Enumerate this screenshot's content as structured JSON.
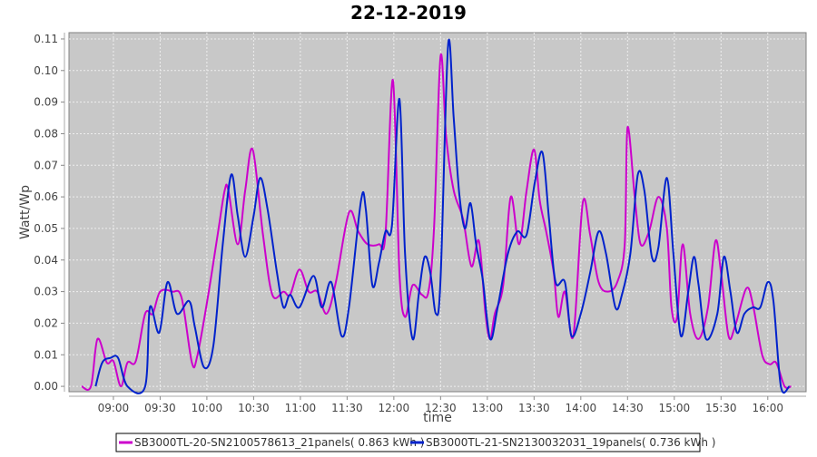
{
  "chart_data": {
    "type": "line",
    "title": "22-12-2019",
    "xlabel": "time",
    "ylabel": "Watt/Wp",
    "x_unit": "hours of day (decimal)",
    "xlim": [
      8.525,
      16.41
    ],
    "ylim": [
      -0.0017,
      0.112
    ],
    "grid": true,
    "legend_position": "bottom",
    "x_ticks": [
      {
        "value": 9.0,
        "label": "09:00"
      },
      {
        "value": 9.5,
        "label": "09:30"
      },
      {
        "value": 10.0,
        "label": "10:00"
      },
      {
        "value": 10.5,
        "label": "10:30"
      },
      {
        "value": 11.0,
        "label": "11:00"
      },
      {
        "value": 11.5,
        "label": "11:30"
      },
      {
        "value": 12.0,
        "label": "12:00"
      },
      {
        "value": 12.5,
        "label": "12:30"
      },
      {
        "value": 13.0,
        "label": "13:00"
      },
      {
        "value": 13.5,
        "label": "13:30"
      },
      {
        "value": 14.0,
        "label": "14:00"
      },
      {
        "value": 14.5,
        "label": "14:30"
      },
      {
        "value": 15.0,
        "label": "15:00"
      },
      {
        "value": 15.5,
        "label": "15:30"
      },
      {
        "value": 16.0,
        "label": "16:00"
      }
    ],
    "y_ticks": [
      {
        "value": 0.0,
        "label": "0.00"
      },
      {
        "value": 0.01,
        "label": "0.01"
      },
      {
        "value": 0.02,
        "label": "0.02"
      },
      {
        "value": 0.03,
        "label": "0.03"
      },
      {
        "value": 0.04,
        "label": "0.04"
      },
      {
        "value": 0.05,
        "label": "0.05"
      },
      {
        "value": 0.06,
        "label": "0.06"
      },
      {
        "value": 0.07,
        "label": "0.07"
      },
      {
        "value": 0.08,
        "label": "0.08"
      },
      {
        "value": 0.09,
        "label": "0.09"
      },
      {
        "value": 0.1,
        "label": "0.10"
      },
      {
        "value": 0.11,
        "label": "0.11"
      }
    ],
    "series": [
      {
        "name": "SB3000TL-20-SN2100578613_21panels( 0.863 kWh )",
        "color": "#cc00cc",
        "points": [
          [
            8.66,
            0
          ],
          [
            8.76,
            0
          ],
          [
            8.83,
            0.015
          ],
          [
            8.93,
            0.0075
          ],
          [
            9.0,
            0.008
          ],
          [
            9.08,
            0
          ],
          [
            9.15,
            0.0075
          ],
          [
            9.24,
            0.008
          ],
          [
            9.34,
            0.023
          ],
          [
            9.42,
            0.023
          ],
          [
            9.5,
            0.03
          ],
          [
            9.63,
            0.03
          ],
          [
            9.73,
            0.028
          ],
          [
            9.84,
            0.0075
          ],
          [
            9.9,
            0.01
          ],
          [
            10.02,
            0.03
          ],
          [
            10.12,
            0.049
          ],
          [
            10.19,
            0.062
          ],
          [
            10.23,
            0.062
          ],
          [
            10.33,
            0.045
          ],
          [
            10.41,
            0.062
          ],
          [
            10.49,
            0.075
          ],
          [
            10.6,
            0.048
          ],
          [
            10.7,
            0.029
          ],
          [
            10.82,
            0.03
          ],
          [
            10.89,
            0.029
          ],
          [
            10.99,
            0.037
          ],
          [
            11.09,
            0.03
          ],
          [
            11.18,
            0.03
          ],
          [
            11.28,
            0.023
          ],
          [
            11.38,
            0.033
          ],
          [
            11.52,
            0.055
          ],
          [
            11.62,
            0.049
          ],
          [
            11.72,
            0.045
          ],
          [
            11.84,
            0.045
          ],
          [
            11.91,
            0.048
          ],
          [
            11.99,
            0.097
          ],
          [
            12.06,
            0.036
          ],
          [
            12.12,
            0.022
          ],
          [
            12.2,
            0.032
          ],
          [
            12.3,
            0.029
          ],
          [
            12.37,
            0.03
          ],
          [
            12.43,
            0.05
          ],
          [
            12.5,
            0.1045
          ],
          [
            12.56,
            0.079
          ],
          [
            12.64,
            0.062
          ],
          [
            12.74,
            0.053
          ],
          [
            12.83,
            0.038
          ],
          [
            12.91,
            0.046
          ],
          [
            12.98,
            0.023
          ],
          [
            13.03,
            0.015
          ],
          [
            13.08,
            0.023
          ],
          [
            13.17,
            0.032
          ],
          [
            13.25,
            0.06
          ],
          [
            13.34,
            0.045
          ],
          [
            13.42,
            0.062
          ],
          [
            13.5,
            0.075
          ],
          [
            13.56,
            0.059
          ],
          [
            13.63,
            0.049
          ],
          [
            13.71,
            0.036
          ],
          [
            13.76,
            0.022
          ],
          [
            13.83,
            0.03
          ],
          [
            13.92,
            0.016
          ],
          [
            14.02,
            0.058
          ],
          [
            14.1,
            0.048
          ],
          [
            14.19,
            0.033
          ],
          [
            14.29,
            0.03
          ],
          [
            14.39,
            0.033
          ],
          [
            14.47,
            0.045
          ],
          [
            14.5,
            0.082
          ],
          [
            14.58,
            0.059
          ],
          [
            14.64,
            0.045
          ],
          [
            14.73,
            0.049
          ],
          [
            14.83,
            0.06
          ],
          [
            14.92,
            0.05
          ],
          [
            14.97,
            0.025
          ],
          [
            15.03,
            0.022
          ],
          [
            15.09,
            0.045
          ],
          [
            15.17,
            0.023
          ],
          [
            15.26,
            0.015
          ],
          [
            15.36,
            0.025
          ],
          [
            15.44,
            0.046
          ],
          [
            15.5,
            0.036
          ],
          [
            15.58,
            0.016
          ],
          [
            15.65,
            0.019
          ],
          [
            15.77,
            0.031
          ],
          [
            15.84,
            0.026
          ],
          [
            15.94,
            0.01
          ],
          [
            16.02,
            0.007
          ],
          [
            16.09,
            0.0075
          ],
          [
            16.18,
            0
          ],
          [
            16.25,
            0
          ]
        ]
      },
      {
        "name": "SB3000TL-21-SN2130032031_19panels( 0.736 kWh )",
        "color": "#0022cc",
        "points": [
          [
            8.81,
            0
          ],
          [
            8.88,
            0.0075
          ],
          [
            8.97,
            0.009
          ],
          [
            9.05,
            0.009
          ],
          [
            9.15,
            0
          ],
          [
            9.34,
            0
          ],
          [
            9.39,
            0.025
          ],
          [
            9.49,
            0.017
          ],
          [
            9.58,
            0.033
          ],
          [
            9.68,
            0.023
          ],
          [
            9.81,
            0.027
          ],
          [
            9.87,
            0.019
          ],
          [
            9.97,
            0.006
          ],
          [
            10.07,
            0.013
          ],
          [
            10.17,
            0.045
          ],
          [
            10.26,
            0.067
          ],
          [
            10.33,
            0.054
          ],
          [
            10.41,
            0.041
          ],
          [
            10.5,
            0.054
          ],
          [
            10.57,
            0.066
          ],
          [
            10.65,
            0.056
          ],
          [
            10.75,
            0.036
          ],
          [
            10.82,
            0.025
          ],
          [
            10.89,
            0.029
          ],
          [
            10.99,
            0.025
          ],
          [
            11.14,
            0.035
          ],
          [
            11.23,
            0.025
          ],
          [
            11.33,
            0.033
          ],
          [
            11.44,
            0.016
          ],
          [
            11.52,
            0.025
          ],
          [
            11.65,
            0.059
          ],
          [
            11.7,
            0.056
          ],
          [
            11.77,
            0.032
          ],
          [
            11.84,
            0.039
          ],
          [
            11.91,
            0.049
          ],
          [
            11.98,
            0.051
          ],
          [
            12.06,
            0.091
          ],
          [
            12.12,
            0.042
          ],
          [
            12.2,
            0.015
          ],
          [
            12.27,
            0.03
          ],
          [
            12.33,
            0.041
          ],
          [
            12.39,
            0.036
          ],
          [
            12.45,
            0.023
          ],
          [
            12.5,
            0.034
          ],
          [
            12.58,
            0.108
          ],
          [
            12.64,
            0.085
          ],
          [
            12.7,
            0.061
          ],
          [
            12.76,
            0.05
          ],
          [
            12.82,
            0.058
          ],
          [
            12.88,
            0.045
          ],
          [
            12.95,
            0.034
          ],
          [
            13.03,
            0.015
          ],
          [
            13.11,
            0.025
          ],
          [
            13.22,
            0.042
          ],
          [
            13.32,
            0.049
          ],
          [
            13.42,
            0.048
          ],
          [
            13.51,
            0.065
          ],
          [
            13.59,
            0.074
          ],
          [
            13.66,
            0.053
          ],
          [
            13.73,
            0.033
          ],
          [
            13.83,
            0.033
          ],
          [
            13.9,
            0.016
          ],
          [
            14.0,
            0.023
          ],
          [
            14.1,
            0.036
          ],
          [
            14.19,
            0.049
          ],
          [
            14.27,
            0.042
          ],
          [
            14.37,
            0.025
          ],
          [
            14.44,
            0.029
          ],
          [
            14.53,
            0.042
          ],
          [
            14.61,
            0.067
          ],
          [
            14.68,
            0.062
          ],
          [
            14.76,
            0.041
          ],
          [
            14.83,
            0.044
          ],
          [
            14.92,
            0.066
          ],
          [
            14.99,
            0.042
          ],
          [
            15.07,
            0.016
          ],
          [
            15.15,
            0.03
          ],
          [
            15.21,
            0.041
          ],
          [
            15.26,
            0.032
          ],
          [
            15.34,
            0.015
          ],
          [
            15.46,
            0.023
          ],
          [
            15.53,
            0.041
          ],
          [
            15.6,
            0.03
          ],
          [
            15.67,
            0.017
          ],
          [
            15.75,
            0.023
          ],
          [
            15.84,
            0.025
          ],
          [
            15.92,
            0.025
          ],
          [
            16.0,
            0.033
          ],
          [
            16.06,
            0.027
          ],
          [
            16.14,
            0
          ],
          [
            16.23,
            0
          ]
        ]
      }
    ]
  }
}
